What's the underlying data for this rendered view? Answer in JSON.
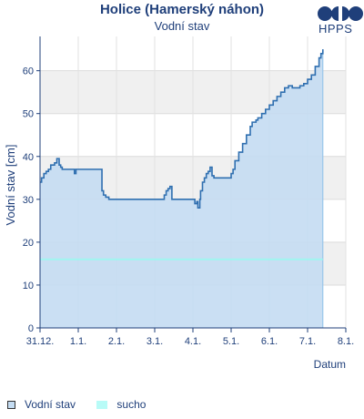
{
  "chart_data": {
    "type": "area",
    "title": "Holice (Hamerský náhon)",
    "subtitle": "Vodní stav",
    "ylabel": "Vodní stav [cm]",
    "xlabel": "Datum",
    "ylim": [
      0,
      68
    ],
    "xlim": [
      0,
      8
    ],
    "yticks": [
      0,
      10,
      20,
      30,
      40,
      50,
      60
    ],
    "xticks": [
      {
        "x": 0,
        "label": "31.12."
      },
      {
        "x": 1,
        "label": "1.1."
      },
      {
        "x": 2,
        "label": "2.1."
      },
      {
        "x": 3,
        "label": "3.1."
      },
      {
        "x": 4,
        "label": "4.1."
      },
      {
        "x": 5,
        "label": "5.1."
      },
      {
        "x": 6,
        "label": "6.1."
      },
      {
        "x": 7,
        "label": "7.1."
      },
      {
        "x": 8,
        "label": "8.1."
      }
    ],
    "grid": true,
    "legend_position": "bottom-left",
    "series": [
      {
        "name": "Vodní stav",
        "color": "#2f6fb0",
        "fill": "#c4dcf2",
        "x": [
          0,
          0.04,
          0.1,
          0.16,
          0.22,
          0.28,
          0.33,
          0.38,
          0.44,
          0.5,
          0.54,
          0.58,
          0.62,
          0.7,
          0.85,
          0.9,
          0.94,
          1.0,
          1.2,
          1.4,
          1.6,
          1.62,
          1.66,
          1.72,
          1.8,
          2.0,
          2.4,
          2.8,
          3.2,
          3.25,
          3.3,
          3.35,
          3.4,
          3.45,
          3.5,
          3.6,
          3.8,
          4.0,
          4.05,
          4.1,
          4.13,
          4.18,
          4.2,
          4.25,
          4.3,
          4.35,
          4.4,
          4.45,
          4.5,
          4.55,
          4.6,
          4.65,
          4.7,
          4.8,
          4.9,
          5.0,
          5.05,
          5.1,
          5.2,
          5.3,
          5.4,
          5.5,
          5.55,
          5.6,
          5.65,
          5.7,
          5.8,
          5.9,
          6.0,
          6.1,
          6.2,
          6.3,
          6.4,
          6.5,
          6.6,
          6.7,
          6.8,
          6.9,
          7.0,
          7.1,
          7.2,
          7.3,
          7.35,
          7.4
        ],
        "values": [
          34,
          35,
          36,
          36.5,
          37,
          38,
          38,
          38.5,
          39.5,
          38,
          37.5,
          37,
          37,
          37,
          37,
          36,
          37,
          37,
          37,
          37,
          37,
          32,
          31,
          30.5,
          30,
          30,
          30,
          30,
          30,
          31,
          32,
          32.5,
          33,
          30,
          30,
          30,
          30,
          30,
          29,
          29.5,
          28,
          30,
          32,
          34,
          35,
          36,
          36.5,
          37.5,
          35.5,
          35,
          35,
          35,
          35,
          35,
          35,
          36,
          37,
          39,
          41,
          43,
          45,
          47,
          48,
          48,
          48.5,
          49,
          50,
          51,
          52,
          53,
          54,
          55,
          56,
          56.5,
          56,
          56,
          56.5,
          57,
          58,
          59,
          61,
          63,
          64,
          65
        ]
      },
      {
        "name": "sucho",
        "color": "#9ff5f0",
        "x": [
          0,
          7.4
        ],
        "values": [
          16,
          16
        ]
      }
    ]
  },
  "logo": {
    "text": "HPPS"
  }
}
